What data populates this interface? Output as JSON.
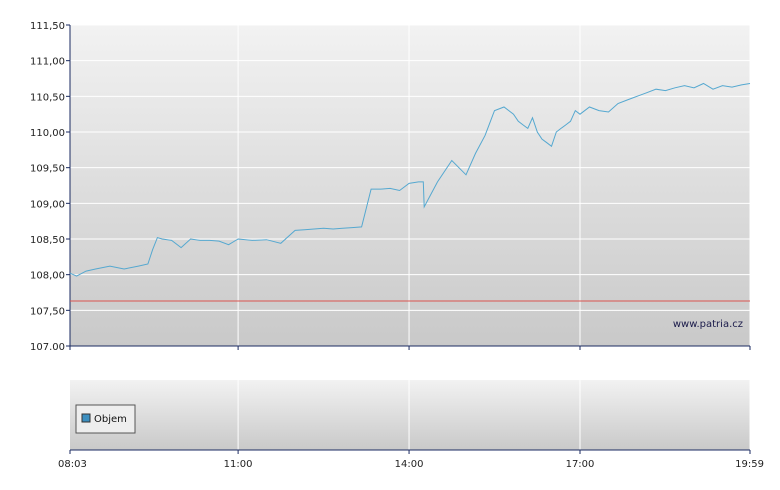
{
  "chart_data": [
    {
      "type": "line",
      "title": "",
      "xlabel": "",
      "ylabel": "",
      "ylim": [
        107.0,
        111.5
      ],
      "y_ticks": [
        "107.00",
        "107,50",
        "108,00",
        "108,50",
        "109,00",
        "109,50",
        "110,00",
        "110,50",
        "111,00",
        "111,50"
      ],
      "x_ticks": [
        "08:03",
        "11:00",
        "14:00",
        "17:00",
        "19:59"
      ],
      "grid": true,
      "watermark": "www.patria.cz",
      "reference_line": {
        "value": 107.63,
        "color": "#d9534f"
      },
      "series": [
        {
          "color": "#55a8d0",
          "x": [
            "08:03",
            "08:10",
            "08:20",
            "08:30",
            "08:45",
            "09:00",
            "09:15",
            "09:25",
            "09:30",
            "09:35",
            "09:40",
            "09:50",
            "10:00",
            "10:10",
            "10:20",
            "10:30",
            "10:40",
            "10:50",
            "11:00",
            "11:15",
            "11:30",
            "11:45",
            "12:00",
            "12:10",
            "12:20",
            "12:30",
            "12:40",
            "12:50",
            "13:00",
            "13:10",
            "13:20",
            "13:30",
            "13:40",
            "13:50",
            "14:00",
            "14:10",
            "14:15",
            "14:16",
            "14:30",
            "14:45",
            "15:00",
            "15:10",
            "15:20",
            "15:30",
            "15:40",
            "15:45",
            "15:50",
            "15:55",
            "16:00",
            "16:05",
            "16:10",
            "16:15",
            "16:20",
            "16:25",
            "16:30",
            "16:35",
            "16:40",
            "16:45",
            "16:50",
            "16:55",
            "17:00",
            "17:10",
            "17:20",
            "17:30",
            "17:40",
            "17:50",
            "18:00",
            "18:10",
            "18:20",
            "18:30",
            "18:40",
            "18:50",
            "19:00",
            "19:10",
            "19:20",
            "19:30",
            "19:40",
            "19:50",
            "19:59"
          ],
          "values": [
            108.02,
            107.98,
            108.05,
            108.08,
            108.12,
            108.08,
            108.12,
            108.15,
            108.35,
            108.52,
            108.5,
            108.48,
            108.38,
            108.5,
            108.48,
            108.48,
            108.47,
            108.42,
            108.5,
            108.48,
            108.49,
            108.44,
            108.62,
            108.63,
            108.64,
            108.65,
            108.64,
            108.65,
            108.66,
            108.67,
            109.2,
            109.2,
            109.21,
            109.18,
            109.28,
            109.3,
            109.3,
            108.95,
            109.3,
            109.6,
            109.4,
            109.7,
            109.95,
            110.3,
            110.35,
            110.3,
            110.25,
            110.15,
            110.1,
            110.05,
            110.2,
            110.0,
            109.9,
            109.85,
            109.8,
            110.0,
            110.05,
            110.1,
            110.15,
            110.3,
            110.25,
            110.35,
            110.3,
            110.28,
            110.4,
            110.45,
            110.5,
            110.55,
            110.6,
            110.58,
            110.62,
            110.65,
            110.62,
            110.68,
            110.6,
            110.65,
            110.63,
            110.66,
            110.68
          ]
        }
      ]
    },
    {
      "type": "bar",
      "title": "",
      "x_ticks": [
        "08:03",
        "11:00",
        "14:00",
        "17:00",
        "19:59"
      ],
      "grid": true,
      "legend": {
        "position": "bottom-left",
        "entries": [
          "Objem"
        ]
      },
      "series": [
        {
          "name": "Objem",
          "color": "#3c8fc0",
          "values": []
        }
      ]
    }
  ]
}
